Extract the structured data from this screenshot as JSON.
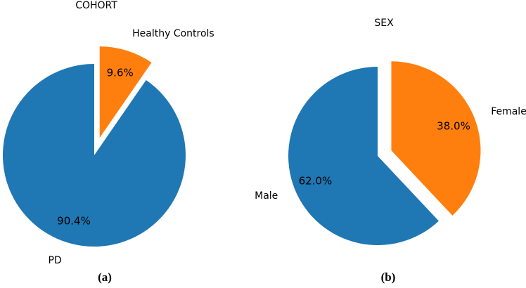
{
  "figure": {
    "background": "#ffffff",
    "text_color": "#000000"
  },
  "palette": {
    "blue": "#1f77b4",
    "orange": "#ff7f0e"
  },
  "chart_data": [
    {
      "type": "pie",
      "title": "COHORT",
      "caption": "(a)",
      "labels": [
        "Healthy Controls",
        "PD"
      ],
      "values": [
        9.6,
        90.4
      ],
      "pct_labels": [
        "9.6%",
        "90.4%"
      ],
      "colors": [
        "#ff7f0e",
        "#1f77b4"
      ],
      "explode": [
        0.2,
        0
      ],
      "start_angle": 90,
      "counterclock": false,
      "pct_distance": 0.75,
      "label_distance": 1.2,
      "legend": "none"
    },
    {
      "type": "pie",
      "title": "SEX",
      "caption": "(b)",
      "labels": [
        "Female",
        "Male"
      ],
      "values": [
        38.0,
        62.0
      ],
      "pct_labels": [
        "38.0%",
        "62.0%"
      ],
      "colors": [
        "#ff7f0e",
        "#1f77b4"
      ],
      "explode": [
        0.165,
        0
      ],
      "start_angle": 90,
      "counterclock": false,
      "pct_distance": 0.75,
      "label_distance": 1.2,
      "legend": "none"
    }
  ]
}
